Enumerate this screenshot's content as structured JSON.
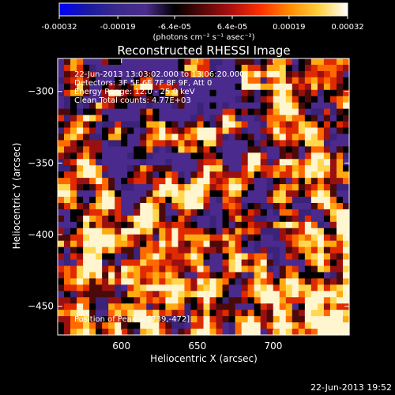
{
  "colorbar": {
    "tick_labels": [
      "-0.00032",
      "-0.00019",
      "-6.4e-05",
      "6.4e-05",
      "0.00019",
      "0.00032"
    ],
    "tick_values": [
      -0.00032,
      -0.00019,
      -6.4e-05,
      6.4e-05,
      0.00019,
      0.00032
    ],
    "range": [
      -0.00032,
      0.00032
    ],
    "unit_label": "(photons cm⁻² s⁻¹ asec⁻²)"
  },
  "chart_data": {
    "type": "heatmap",
    "title": "Reconstructed RHESSI Image",
    "xlabel": "Heliocentric X (arcsec)",
    "ylabel": "Heliocentric Y (arcsec)",
    "xlim": [
      558,
      750
    ],
    "ylim": [
      -470,
      -277
    ],
    "x_ticks": [
      600,
      650,
      700
    ],
    "y_ticks": [
      -300,
      -350,
      -400,
      -450
    ],
    "x_tick_labels": [
      "600",
      "650",
      "700"
    ],
    "y_tick_labels": [
      "−300",
      "−350",
      "−400",
      "−450"
    ],
    "colormap": [
      "#0000ff",
      "#1a1aa0",
      "#3b2a8a",
      "#4b2c8c",
      "#000000",
      "#5a0808",
      "#b01010",
      "#ff3000",
      "#ff8c00",
      "#ffd040",
      "#ffffff"
    ],
    "grid": false,
    "annotations": [
      "22-Jun-2013 13:03:02.000 to 13:06:20.000",
      "Detectors: 3F 5F 6F 7F 8F 9F, Att 0",
      "Energy Range: 12.0 - 25.0 keV",
      "Clean     Total counts: 4.77E+03",
      "Position of Peak = [739,-472]"
    ]
  },
  "footer": {
    "timestamp": "22-Jun-2013 19:52"
  }
}
